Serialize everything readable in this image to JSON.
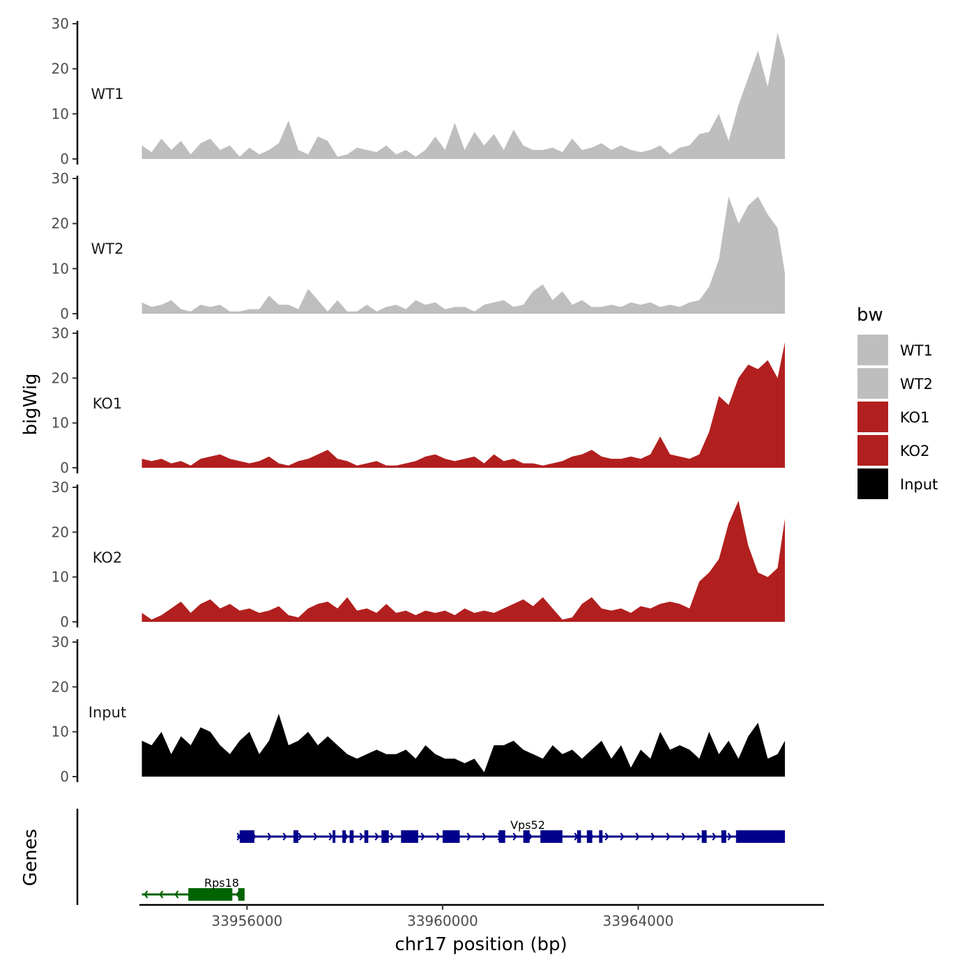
{
  "chart_data": {
    "type": "area",
    "chromosome": "chr17",
    "xlabel": "chr17 position (bp)",
    "ylabel": "bigWig",
    "genes_label": "Genes",
    "xlim": [
      33953800,
      33967800
    ],
    "x_ticks": [
      33956000,
      33960000,
      33964000
    ],
    "x_tick_labels": [
      "33956000",
      "33960000",
      "33964000"
    ],
    "ylim": [
      0,
      30
    ],
    "y_ticks": [
      0,
      10,
      20,
      30
    ],
    "y_tick_labels": [
      "0",
      "10",
      "20",
      "30"
    ],
    "legend": {
      "title": "bw",
      "entries": [
        {
          "label": "WT1",
          "color": "#bebebe"
        },
        {
          "label": "WT2",
          "color": "#bebebe"
        },
        {
          "label": "KO1",
          "color": "#b21f1f"
        },
        {
          "label": "KO2",
          "color": "#b21f1f"
        },
        {
          "label": "Input",
          "color": "#000000"
        }
      ]
    },
    "series": [
      {
        "name": "WT1",
        "color": "#bebebe",
        "x": [
          33953850,
          33954050,
          33954250,
          33954450,
          33954650,
          33954850,
          33955050,
          33955250,
          33955450,
          33955650,
          33955850,
          33956050,
          33956250,
          33956450,
          33956650,
          33956850,
          33957050,
          33957250,
          33957450,
          33957650,
          33957850,
          33958050,
          33958250,
          33958450,
          33958650,
          33958850,
          33959050,
          33959250,
          33959450,
          33959650,
          33959850,
          33960050,
          33960250,
          33960450,
          33960650,
          33960850,
          33961050,
          33961250,
          33961450,
          33961650,
          33961850,
          33962050,
          33962250,
          33962450,
          33962650,
          33962850,
          33963050,
          33963250,
          33963450,
          33963650,
          33963850,
          33964050,
          33964250,
          33964450,
          33964650,
          33964850,
          33965050,
          33965250,
          33965450,
          33965650,
          33965850,
          33966050,
          33966250,
          33966450,
          33966650,
          33966850,
          33967000
        ],
        "values": [
          3,
          1.5,
          4.5,
          2,
          4,
          1,
          3.5,
          4.5,
          2,
          3,
          0.5,
          2.5,
          1,
          2,
          3.5,
          8.5,
          2,
          1,
          5,
          4,
          0.5,
          1,
          2.5,
          2,
          1.5,
          3,
          1,
          2,
          0.5,
          2,
          5,
          2,
          8,
          2,
          6,
          3,
          5.5,
          2,
          6.5,
          3,
          2,
          2,
          2.5,
          1.5,
          4.5,
          2,
          2.5,
          3.5,
          2,
          3,
          2,
          1.5,
          2,
          3,
          1,
          2.5,
          3,
          5.5,
          6,
          10,
          4,
          12,
          18,
          24,
          16,
          28,
          22
        ]
      },
      {
        "name": "WT2",
        "color": "#bebebe",
        "x": [
          33953850,
          33954050,
          33954250,
          33954450,
          33954650,
          33954850,
          33955050,
          33955250,
          33955450,
          33955650,
          33955850,
          33956050,
          33956250,
          33956450,
          33956650,
          33956850,
          33957050,
          33957250,
          33957450,
          33957650,
          33957850,
          33958050,
          33958250,
          33958450,
          33958650,
          33958850,
          33959050,
          33959250,
          33959450,
          33959650,
          33959850,
          33960050,
          33960250,
          33960450,
          33960650,
          33960850,
          33961050,
          33961250,
          33961450,
          33961650,
          33961850,
          33962050,
          33962250,
          33962450,
          33962650,
          33962850,
          33963050,
          33963250,
          33963450,
          33963650,
          33963850,
          33964050,
          33964250,
          33964450,
          33964650,
          33964850,
          33965050,
          33965250,
          33965450,
          33965650,
          33965850,
          33966050,
          33966250,
          33966450,
          33966650,
          33966850,
          33967000
        ],
        "values": [
          2.5,
          1.5,
          2,
          3,
          1,
          0.5,
          2,
          1.5,
          2,
          0.5,
          0.5,
          1,
          1,
          4,
          2,
          2,
          1,
          5.5,
          3,
          0.5,
          3,
          0.5,
          0.5,
          2,
          0.5,
          1.5,
          2,
          1,
          3,
          2,
          2.5,
          1,
          1.5,
          1.5,
          0.5,
          2,
          2.5,
          3,
          1.5,
          2,
          5,
          6.5,
          3,
          5,
          2,
          3,
          1.5,
          1.5,
          2,
          1.5,
          2.5,
          2,
          2.5,
          1.5,
          2,
          1.5,
          2.5,
          3,
          6,
          12,
          26,
          20,
          24,
          26,
          22,
          19,
          9
        ]
      },
      {
        "name": "KO1",
        "color": "#b21f1f",
        "x": [
          33953850,
          33954050,
          33954250,
          33954450,
          33954650,
          33954850,
          33955050,
          33955250,
          33955450,
          33955650,
          33955850,
          33956050,
          33956250,
          33956450,
          33956650,
          33956850,
          33957050,
          33957250,
          33957450,
          33957650,
          33957850,
          33958050,
          33958250,
          33958450,
          33958650,
          33958850,
          33959050,
          33959250,
          33959450,
          33959650,
          33959850,
          33960050,
          33960250,
          33960450,
          33960650,
          33960850,
          33961050,
          33961250,
          33961450,
          33961650,
          33961850,
          33962050,
          33962250,
          33962450,
          33962650,
          33962850,
          33963050,
          33963250,
          33963450,
          33963650,
          33963850,
          33964050,
          33964250,
          33964450,
          33964650,
          33964850,
          33965050,
          33965250,
          33965450,
          33965650,
          33965850,
          33966050,
          33966250,
          33966450,
          33966650,
          33966850,
          33967000
        ],
        "values": [
          2,
          1.5,
          2,
          1,
          1.5,
          0.5,
          2,
          2.5,
          3,
          2,
          1.5,
          1,
          1.5,
          2.5,
          1,
          0.5,
          1.5,
          2,
          3,
          4,
          2,
          1.5,
          0.5,
          1,
          1.5,
          0.5,
          0.5,
          1,
          1.5,
          2.5,
          3,
          2,
          1.5,
          2,
          2.5,
          1,
          3,
          1.5,
          2,
          1,
          1,
          0.5,
          1,
          1.5,
          2.5,
          3,
          4,
          2.5,
          2,
          2,
          2.5,
          2,
          3,
          7,
          3,
          2.5,
          2,
          3,
          8,
          16,
          14,
          20,
          23,
          22,
          24,
          20,
          28
        ]
      },
      {
        "name": "KO2",
        "color": "#b21f1f",
        "x": [
          33953850,
          33954050,
          33954250,
          33954450,
          33954650,
          33954850,
          33955050,
          33955250,
          33955450,
          33955650,
          33955850,
          33956050,
          33956250,
          33956450,
          33956650,
          33956850,
          33957050,
          33957250,
          33957450,
          33957650,
          33957850,
          33958050,
          33958250,
          33958450,
          33958650,
          33958850,
          33959050,
          33959250,
          33959450,
          33959650,
          33959850,
          33960050,
          33960250,
          33960450,
          33960650,
          33960850,
          33961050,
          33961250,
          33961450,
          33961650,
          33961850,
          33962050,
          33962250,
          33962450,
          33962650,
          33962850,
          33963050,
          33963250,
          33963450,
          33963650,
          33963850,
          33964050,
          33964250,
          33964450,
          33964650,
          33964850,
          33965050,
          33965250,
          33965450,
          33965650,
          33965850,
          33966050,
          33966250,
          33966450,
          33966650,
          33966850,
          33967000
        ],
        "values": [
          2,
          0.5,
          1.5,
          3,
          4.5,
          2,
          4,
          5,
          3,
          4,
          2.5,
          3,
          2,
          2.5,
          3.5,
          1.5,
          1,
          3,
          4,
          4.5,
          3,
          5.5,
          2.5,
          3,
          2,
          4,
          2,
          2.5,
          1.5,
          2.5,
          2,
          2.5,
          1.5,
          3,
          2,
          2.5,
          2,
          3,
          4,
          5,
          3.5,
          5.5,
          3,
          0.5,
          1,
          4,
          5.5,
          3,
          2.5,
          3,
          2,
          3.5,
          3,
          4,
          4.5,
          4,
          3,
          9,
          11,
          14,
          22,
          27,
          17,
          11,
          10,
          12,
          23
        ]
      },
      {
        "name": "Input",
        "color": "#000000",
        "x": [
          33953850,
          33954050,
          33954250,
          33954450,
          33954650,
          33954850,
          33955050,
          33955250,
          33955450,
          33955650,
          33955850,
          33956050,
          33956250,
          33956450,
          33956650,
          33956850,
          33957050,
          33957250,
          33957450,
          33957650,
          33957850,
          33958050,
          33958250,
          33958450,
          33958650,
          33958850,
          33959050,
          33959250,
          33959450,
          33959650,
          33959850,
          33960050,
          33960250,
          33960450,
          33960650,
          33960850,
          33961050,
          33961250,
          33961450,
          33961650,
          33961850,
          33962050,
          33962250,
          33962450,
          33962650,
          33962850,
          33963050,
          33963250,
          33963450,
          33963650,
          33963850,
          33964050,
          33964250,
          33964450,
          33964650,
          33964850,
          33965050,
          33965250,
          33965450,
          33965650,
          33965850,
          33966050,
          33966250,
          33966450,
          33966650,
          33966850,
          33967000
        ],
        "values": [
          8,
          7,
          10,
          5,
          9,
          7,
          11,
          10,
          7,
          5,
          8,
          10,
          5,
          8,
          14,
          7,
          8,
          10,
          7,
          9,
          7,
          5,
          4,
          5,
          6,
          5,
          5,
          6,
          4,
          7,
          5,
          4,
          4,
          3,
          4,
          1,
          7,
          7,
          8,
          6,
          5,
          4,
          7,
          5,
          6,
          4,
          6,
          8,
          4,
          7,
          2,
          6,
          4,
          10,
          6,
          7,
          6,
          4,
          10,
          5,
          8,
          4,
          9,
          12,
          4,
          5,
          8
        ]
      }
    ],
    "genes": [
      {
        "name": "Vps52",
        "strand": "+",
        "color": "#00008b",
        "start": 33955800,
        "end": 33967000,
        "exons": [
          [
            33955850,
            33956150
          ],
          [
            33956950,
            33957050
          ],
          [
            33957750,
            33957800
          ],
          [
            33957950,
            33958020
          ],
          [
            33958100,
            33958180
          ],
          [
            33958400,
            33958480
          ],
          [
            33958750,
            33958900
          ],
          [
            33959150,
            33959500
          ],
          [
            33960000,
            33960350
          ],
          [
            33961150,
            33961280
          ],
          [
            33961650,
            33961780
          ],
          [
            33962000,
            33962450
          ],
          [
            33962750,
            33962830
          ],
          [
            33962950,
            33963060
          ],
          [
            33963200,
            33963270
          ],
          [
            33965300,
            33965400
          ],
          [
            33965700,
            33965800
          ],
          [
            33966000,
            33967000
          ]
        ]
      },
      {
        "name": "Rps18",
        "strand": "-",
        "color": "#006400",
        "start": 33953850,
        "end": 33955950,
        "exons": [
          [
            33954800,
            33955700
          ],
          [
            33955820,
            33955950
          ]
        ]
      }
    ]
  }
}
